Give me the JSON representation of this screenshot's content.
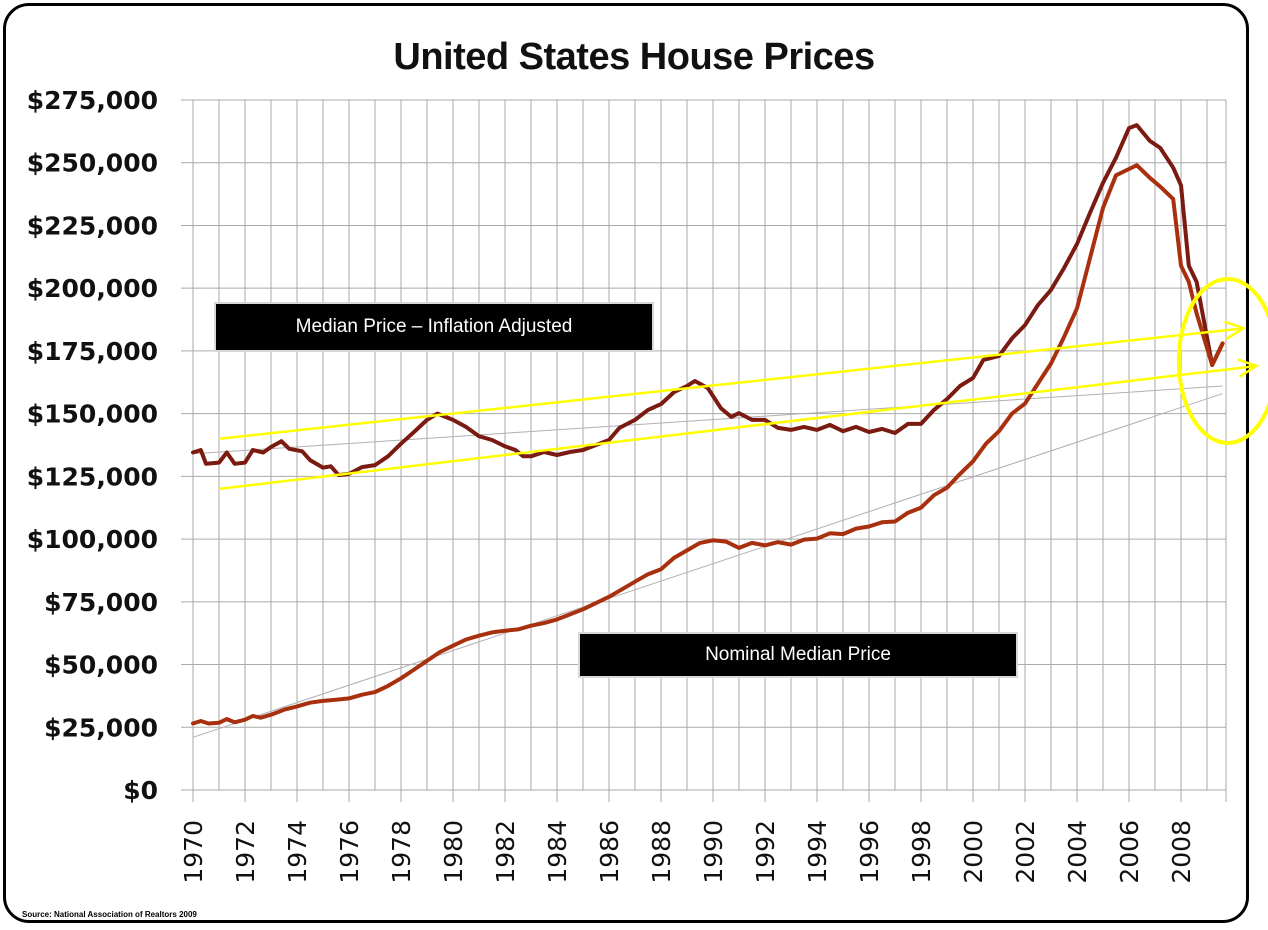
{
  "chart_data": {
    "type": "line",
    "title": "United States House Prices",
    "xlabel": "",
    "ylabel": "",
    "source": "Source: National Association of Realtors 2009",
    "ylim": [
      0,
      275000
    ],
    "xlim": [
      1970,
      2009.75
    ],
    "y_ticks": [
      "$0",
      "$25,000",
      "$50,000",
      "$75,000",
      "$100,000",
      "$125,000",
      "$150,000",
      "$175,000",
      "$200,000",
      "$225,000",
      "$250,000",
      "$275,000"
    ],
    "y_tick_values": [
      0,
      25000,
      50000,
      75000,
      100000,
      125000,
      150000,
      175000,
      200000,
      225000,
      250000,
      275000
    ],
    "x_ticks": [
      "1970",
      "1972",
      "1974",
      "1976",
      "1978",
      "1980",
      "1982",
      "1984",
      "1986",
      "1988",
      "1990",
      "1992",
      "1994",
      "1996",
      "1998",
      "2000",
      "2002",
      "2004",
      "2006",
      "2008"
    ],
    "grid": true,
    "series": [
      {
        "name": "Median Price – Inflation Adjusted",
        "color": "#7a1a10",
        "x": [
          1970.0,
          1970.3,
          1970.5,
          1971.0,
          1971.3,
          1971.6,
          1972.0,
          1972.3,
          1972.7,
          1973.0,
          1973.4,
          1973.7,
          1974.2,
          1974.5,
          1975.0,
          1975.3,
          1975.6,
          1976.0,
          1976.5,
          1977.0,
          1977.5,
          1978.0,
          1978.5,
          1979.0,
          1979.4,
          1980.0,
          1980.5,
          1981.0,
          1981.5,
          1982.0,
          1982.4,
          1982.7,
          1983.0,
          1983.5,
          1984.0,
          1984.5,
          1985.0,
          1985.5,
          1986.0,
          1986.4,
          1987.0,
          1987.5,
          1988.0,
          1988.5,
          1989.0,
          1989.3,
          1989.8,
          1990.3,
          1990.7,
          1991.0,
          1991.5,
          1992.0,
          1992.5,
          1993.0,
          1993.5,
          1994.0,
          1994.5,
          1995.0,
          1995.5,
          1996.0,
          1996.5,
          1997.0,
          1997.5,
          1998.0,
          1998.5,
          1999.0,
          1999.5,
          2000.0,
          2000.4,
          2001.0,
          2001.5,
          2002.0,
          2002.5,
          2003.0,
          2003.5,
          2004.0,
          2004.5,
          2005.0,
          2005.5,
          2006.0,
          2006.3,
          2006.8,
          2007.2,
          2007.7,
          2008.0,
          2008.3,
          2008.6,
          2009.2,
          2009.6
        ],
        "values": [
          134500,
          135500,
          130000,
          130500,
          134500,
          130000,
          130500,
          135500,
          134500,
          136700,
          139000,
          136000,
          135000,
          131500,
          128500,
          129000,
          125500,
          126000,
          128700,
          129500,
          133000,
          138000,
          142700,
          147500,
          150000,
          147500,
          144700,
          141000,
          139500,
          137000,
          135500,
          133000,
          133000,
          134700,
          133500,
          134700,
          135500,
          137500,
          139500,
          144300,
          147500,
          151500,
          153800,
          158600,
          161000,
          163000,
          160200,
          152200,
          148700,
          150200,
          147500,
          147500,
          144300,
          143500,
          144700,
          143500,
          145500,
          143000,
          144700,
          142700,
          143900,
          142300,
          145900,
          145900,
          151500,
          155800,
          161000,
          164200,
          171400,
          173000,
          180000,
          185300,
          193300,
          199300,
          208000,
          217600,
          230000,
          242000,
          252000,
          263800,
          265000,
          258700,
          255900,
          248000,
          241000,
          209000,
          202500,
          169400,
          178000
        ]
      },
      {
        "name": "Nominal Median Price",
        "color": "#a8300e",
        "x": [
          1970.0,
          1970.3,
          1970.6,
          1971.0,
          1971.3,
          1971.6,
          1972.0,
          1972.3,
          1972.6,
          1973.0,
          1973.5,
          1974.0,
          1974.5,
          1975.0,
          1975.5,
          1976.0,
          1976.5,
          1977.0,
          1977.5,
          1978.0,
          1978.5,
          1979.0,
          1979.5,
          1980.0,
          1980.5,
          1981.0,
          1981.5,
          1982.0,
          1982.5,
          1983.0,
          1983.5,
          1984.0,
          1984.5,
          1985.0,
          1985.5,
          1986.0,
          1986.5,
          1987.0,
          1987.5,
          1988.0,
          1988.5,
          1989.0,
          1989.5,
          1990.0,
          1990.5,
          1991.0,
          1991.5,
          1992.0,
          1992.5,
          1993.0,
          1993.5,
          1994.0,
          1994.5,
          1995.0,
          1995.5,
          1996.0,
          1996.5,
          1997.0,
          1997.5,
          1998.0,
          1998.5,
          1999.0,
          1999.5,
          2000.0,
          2000.5,
          2001.0,
          2001.5,
          2002.0,
          2002.5,
          2003.0,
          2003.5,
          2004.0,
          2004.5,
          2005.0,
          2005.5,
          2006.0,
          2006.3,
          2006.8,
          2007.2,
          2007.7,
          2008.0,
          2008.3,
          2008.6,
          2009.2,
          2009.6
        ],
        "values": [
          26500,
          27500,
          26500,
          26800,
          28300,
          27000,
          28000,
          29500,
          28800,
          30000,
          32000,
          33300,
          34800,
          35500,
          36000,
          36500,
          38000,
          39000,
          41500,
          44500,
          48000,
          51500,
          55000,
          57500,
          60000,
          61500,
          62800,
          63500,
          64000,
          65500,
          66500,
          68000,
          70000,
          72000,
          74500,
          77000,
          80000,
          83000,
          86000,
          88000,
          92500,
          95500,
          98500,
          99500,
          99000,
          96500,
          98500,
          97500,
          98800,
          97800,
          99800,
          100200,
          102300,
          102000,
          104200,
          105000,
          106700,
          107000,
          110500,
          112500,
          117500,
          120500,
          126000,
          131000,
          138000,
          143000,
          150000,
          154000,
          162000,
          170000,
          180500,
          192000,
          212000,
          232000,
          245000,
          247500,
          249000,
          244000,
          240500,
          235500,
          209000,
          202500,
          190000,
          169400,
          178000
        ]
      }
    ],
    "trend_lines": [
      {
        "name": "Inflation adjusted linear trend",
        "color": "#b0b0b0",
        "x": [
          1970.0,
          2009.6
        ],
        "values": [
          134000,
          161000
        ]
      },
      {
        "name": "Nominal linear trend",
        "color": "#b0b0b0",
        "x": [
          1970.0,
          2009.6
        ],
        "values": [
          21000,
          158000
        ]
      }
    ],
    "annotations": [
      {
        "type": "arrow",
        "color": "#ffff00",
        "x": [
          1971.0,
          2010.4
        ],
        "values": [
          140000,
          184000
        ]
      },
      {
        "type": "arrow",
        "color": "#ffff00",
        "x": [
          1971.0,
          2010.9
        ],
        "values": [
          120000,
          169000
        ]
      },
      {
        "type": "ellipse",
        "color": "#ffff00",
        "center_x": 2009.8,
        "center_y": 171000
      },
      {
        "type": "label-box",
        "text": "Median Price – Inflation Adjusted"
      },
      {
        "type": "label-box",
        "text": "Nominal Median Price"
      }
    ]
  },
  "labels": {
    "inflation_box": "Median Price – Inflation Adjusted",
    "nominal_box": "Nominal Median Price"
  }
}
